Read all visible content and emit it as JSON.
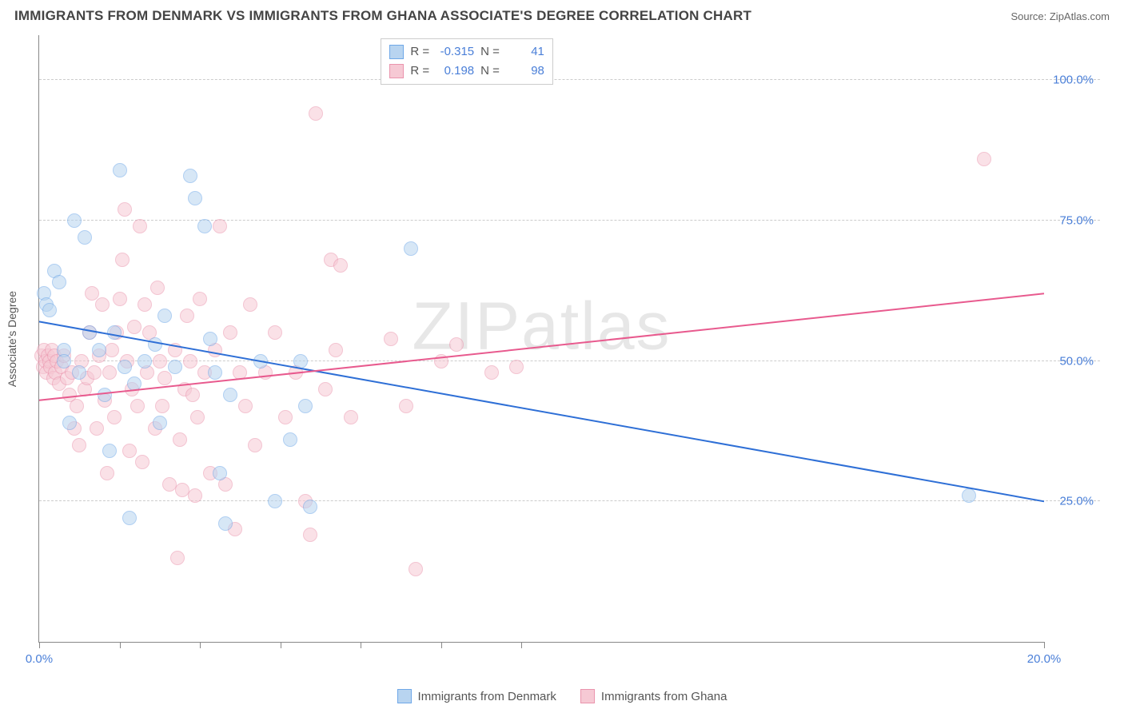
{
  "title": "IMMIGRANTS FROM DENMARK VS IMMIGRANTS FROM GHANA ASSOCIATE'S DEGREE CORRELATION CHART",
  "source": "Source: ZipAtlas.com",
  "watermark": "ZIPatlas",
  "chart": {
    "type": "scatter",
    "y_axis_label": "Associate's Degree",
    "xlim": [
      0,
      20
    ],
    "ylim": [
      0,
      108
    ],
    "x_ticks": [
      0,
      1.6,
      3.2,
      4.8,
      6.4,
      8.0,
      9.6,
      20
    ],
    "x_tick_labels": {
      "0": "0.0%",
      "20": "20.0%"
    },
    "y_ticks": [
      25,
      50,
      75,
      100
    ],
    "y_tick_labels": {
      "25": "25.0%",
      "50": "50.0%",
      "75": "75.0%",
      "100": "100.0%"
    },
    "grid_color": "#cccccc",
    "axis_color": "#888888",
    "background_color": "#ffffff",
    "tick_label_color": "#4a7fd8",
    "marker_size": 18,
    "marker_opacity": 0.55,
    "series": [
      {
        "name": "Immigrants from Denmark",
        "color_fill": "#b8d4f0",
        "color_border": "#6fa8e8",
        "legend_swatch_fill": "#b8d4f0",
        "legend_swatch_border": "#6fa8e8",
        "R": "-0.315",
        "N": "41",
        "trend": {
          "x1": 0,
          "y1": 57,
          "x2": 20,
          "y2": 25,
          "color": "#2e6fd6",
          "width": 2
        },
        "points": [
          [
            0.1,
            62
          ],
          [
            0.15,
            60
          ],
          [
            0.2,
            59
          ],
          [
            0.3,
            66
          ],
          [
            0.4,
            64
          ],
          [
            0.5,
            52
          ],
          [
            0.5,
            50
          ],
          [
            0.6,
            39
          ],
          [
            0.7,
            75
          ],
          [
            0.8,
            48
          ],
          [
            0.9,
            72
          ],
          [
            1.0,
            55
          ],
          [
            1.2,
            52
          ],
          [
            1.3,
            44
          ],
          [
            1.4,
            34
          ],
          [
            1.5,
            55
          ],
          [
            1.6,
            84
          ],
          [
            1.7,
            49
          ],
          [
            1.8,
            22
          ],
          [
            1.9,
            46
          ],
          [
            2.1,
            50
          ],
          [
            2.3,
            53
          ],
          [
            2.4,
            39
          ],
          [
            2.5,
            58
          ],
          [
            2.7,
            49
          ],
          [
            3.0,
            83
          ],
          [
            3.1,
            79
          ],
          [
            3.3,
            74
          ],
          [
            3.4,
            54
          ],
          [
            3.5,
            48
          ],
          [
            3.6,
            30
          ],
          [
            3.7,
            21
          ],
          [
            3.8,
            44
          ],
          [
            4.4,
            50
          ],
          [
            4.7,
            25
          ],
          [
            5.0,
            36
          ],
          [
            5.2,
            50
          ],
          [
            5.3,
            42
          ],
          [
            5.4,
            24
          ],
          [
            7.4,
            70
          ],
          [
            18.5,
            26
          ]
        ]
      },
      {
        "name": "Immigrants from Ghana",
        "color_fill": "#f6c9d4",
        "color_border": "#ea94ad",
        "legend_swatch_fill": "#f6c9d4",
        "legend_swatch_border": "#ea94ad",
        "R": "0.198",
        "N": "98",
        "trend": {
          "x1": 0,
          "y1": 43,
          "x2": 20,
          "y2": 62,
          "color": "#e85a8e",
          "width": 2
        },
        "points": [
          [
            0.05,
            51
          ],
          [
            0.08,
            49
          ],
          [
            0.1,
            52
          ],
          [
            0.12,
            50
          ],
          [
            0.15,
            48
          ],
          [
            0.18,
            51
          ],
          [
            0.2,
            50
          ],
          [
            0.22,
            49
          ],
          [
            0.25,
            52
          ],
          [
            0.28,
            47
          ],
          [
            0.3,
            51
          ],
          [
            0.32,
            48
          ],
          [
            0.35,
            50
          ],
          [
            0.4,
            46
          ],
          [
            0.45,
            49
          ],
          [
            0.5,
            51
          ],
          [
            0.55,
            47
          ],
          [
            0.6,
            44
          ],
          [
            0.65,
            48
          ],
          [
            0.7,
            38
          ],
          [
            0.75,
            42
          ],
          [
            0.8,
            35
          ],
          [
            0.85,
            50
          ],
          [
            0.9,
            45
          ],
          [
            0.95,
            47
          ],
          [
            1.0,
            55
          ],
          [
            1.05,
            62
          ],
          [
            1.1,
            48
          ],
          [
            1.15,
            38
          ],
          [
            1.2,
            51
          ],
          [
            1.25,
            60
          ],
          [
            1.3,
            43
          ],
          [
            1.35,
            30
          ],
          [
            1.4,
            48
          ],
          [
            1.45,
            52
          ],
          [
            1.5,
            40
          ],
          [
            1.55,
            55
          ],
          [
            1.6,
            61
          ],
          [
            1.7,
            77
          ],
          [
            1.75,
            50
          ],
          [
            1.8,
            34
          ],
          [
            1.85,
            45
          ],
          [
            1.9,
            56
          ],
          [
            1.95,
            42
          ],
          [
            2.0,
            74
          ],
          [
            2.1,
            60
          ],
          [
            2.15,
            48
          ],
          [
            2.2,
            55
          ],
          [
            2.3,
            38
          ],
          [
            2.35,
            63
          ],
          [
            2.4,
            50
          ],
          [
            2.45,
            42
          ],
          [
            2.5,
            47
          ],
          [
            2.6,
            28
          ],
          [
            2.7,
            52
          ],
          [
            2.75,
            15
          ],
          [
            2.8,
            36
          ],
          [
            2.85,
            27
          ],
          [
            2.9,
            45
          ],
          [
            2.95,
            58
          ],
          [
            3.0,
            50
          ],
          [
            3.1,
            26
          ],
          [
            3.15,
            40
          ],
          [
            3.2,
            61
          ],
          [
            3.3,
            48
          ],
          [
            3.4,
            30
          ],
          [
            3.5,
            52
          ],
          [
            3.6,
            74
          ],
          [
            3.7,
            28
          ],
          [
            3.8,
            55
          ],
          [
            3.9,
            20
          ],
          [
            4.0,
            48
          ],
          [
            4.1,
            42
          ],
          [
            4.2,
            60
          ],
          [
            4.3,
            35
          ],
          [
            4.5,
            48
          ],
          [
            4.7,
            55
          ],
          [
            4.9,
            40
          ],
          [
            5.1,
            48
          ],
          [
            5.3,
            25
          ],
          [
            5.4,
            19
          ],
          [
            5.5,
            94
          ],
          [
            5.7,
            45
          ],
          [
            5.8,
            68
          ],
          [
            5.9,
            52
          ],
          [
            6.0,
            67
          ],
          [
            6.2,
            40
          ],
          [
            7.0,
            54
          ],
          [
            7.3,
            42
          ],
          [
            7.5,
            13
          ],
          [
            8.0,
            50
          ],
          [
            8.3,
            53
          ],
          [
            9.0,
            48
          ],
          [
            9.5,
            49
          ],
          [
            18.8,
            86
          ],
          [
            1.65,
            68
          ],
          [
            2.05,
            32
          ],
          [
            3.05,
            44
          ]
        ]
      }
    ]
  },
  "legend_top": {
    "r_label": "R =",
    "n_label": "N ="
  },
  "legend_bottom": {
    "items": [
      "Immigrants from Denmark",
      "Immigrants from Ghana"
    ]
  }
}
